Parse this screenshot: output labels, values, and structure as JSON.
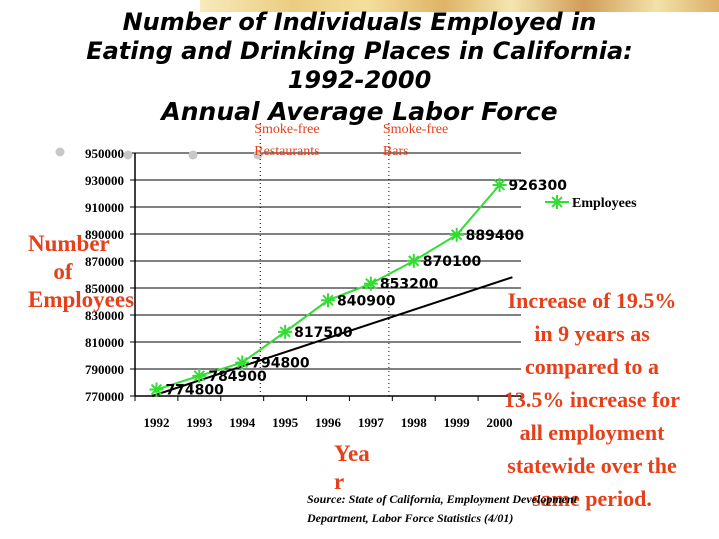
{
  "title_lines": [
    "Number of Individuals Employed in",
    "Eating and Drinking Places in California:",
    "1992-2000"
  ],
  "subtitle": "Annual Average Labor Force",
  "ylabel_lines": [
    "Number of",
    "Employees"
  ],
  "xlabel_lines": [
    "Yea",
    "r"
  ],
  "note_lines": [
    "Increase of 19.5%",
    "in 9 years as",
    "compared to a",
    "13.5% increase for",
    "all employment",
    "statewide over the",
    "same period."
  ],
  "source_lines": [
    "Source: State of California, Employment Development",
    "Department, Labor Force Statistics (4/01)"
  ],
  "colors": {
    "series": "#33dd33",
    "trend": "#000000",
    "annotation": "#e5401a",
    "grid": "#000000"
  },
  "chart_data": {
    "type": "line",
    "title": "Number of Individuals Employed in Eating and Drinking Places in California: 1992-2000",
    "subtitle": "Annual Average Labor Force",
    "xlabel": "Year",
    "ylabel": "Number of Employees",
    "categories": [
      "1992",
      "1993",
      "1994",
      "1995",
      "1996",
      "1997",
      "1998",
      "1999",
      "2000"
    ],
    "ylim": [
      770000,
      950000
    ],
    "yticks": [
      950000,
      930000,
      910000,
      890000,
      870000,
      850000,
      830000,
      810000,
      790000,
      770000
    ],
    "ytick_labels": [
      "950000",
      "930000",
      "910000",
      "890000",
      "870000",
      "850000",
      "830000",
      "810000",
      "790000",
      "770000"
    ],
    "grid": "horizontal",
    "legend_position": "right",
    "series": [
      {
        "name": "Employees",
        "marker": "asterisk",
        "values": [
          774800,
          784900,
          794800,
          817500,
          840900,
          853200,
          870100,
          889400,
          926300
        ],
        "labels": [
          "774800",
          "784900",
          "794800",
          "817500",
          "840900",
          "853200",
          "870100",
          "889400",
          "926300"
        ]
      }
    ],
    "trend_line": {
      "start": 770000,
      "end": 858000
    },
    "annotations": [
      {
        "x": "1995",
        "lines": [
          "Smoke-free",
          "Restaurants"
        ]
      },
      {
        "x": "1998",
        "lines": [
          "Smoke-free",
          "Bars"
        ]
      }
    ]
  }
}
